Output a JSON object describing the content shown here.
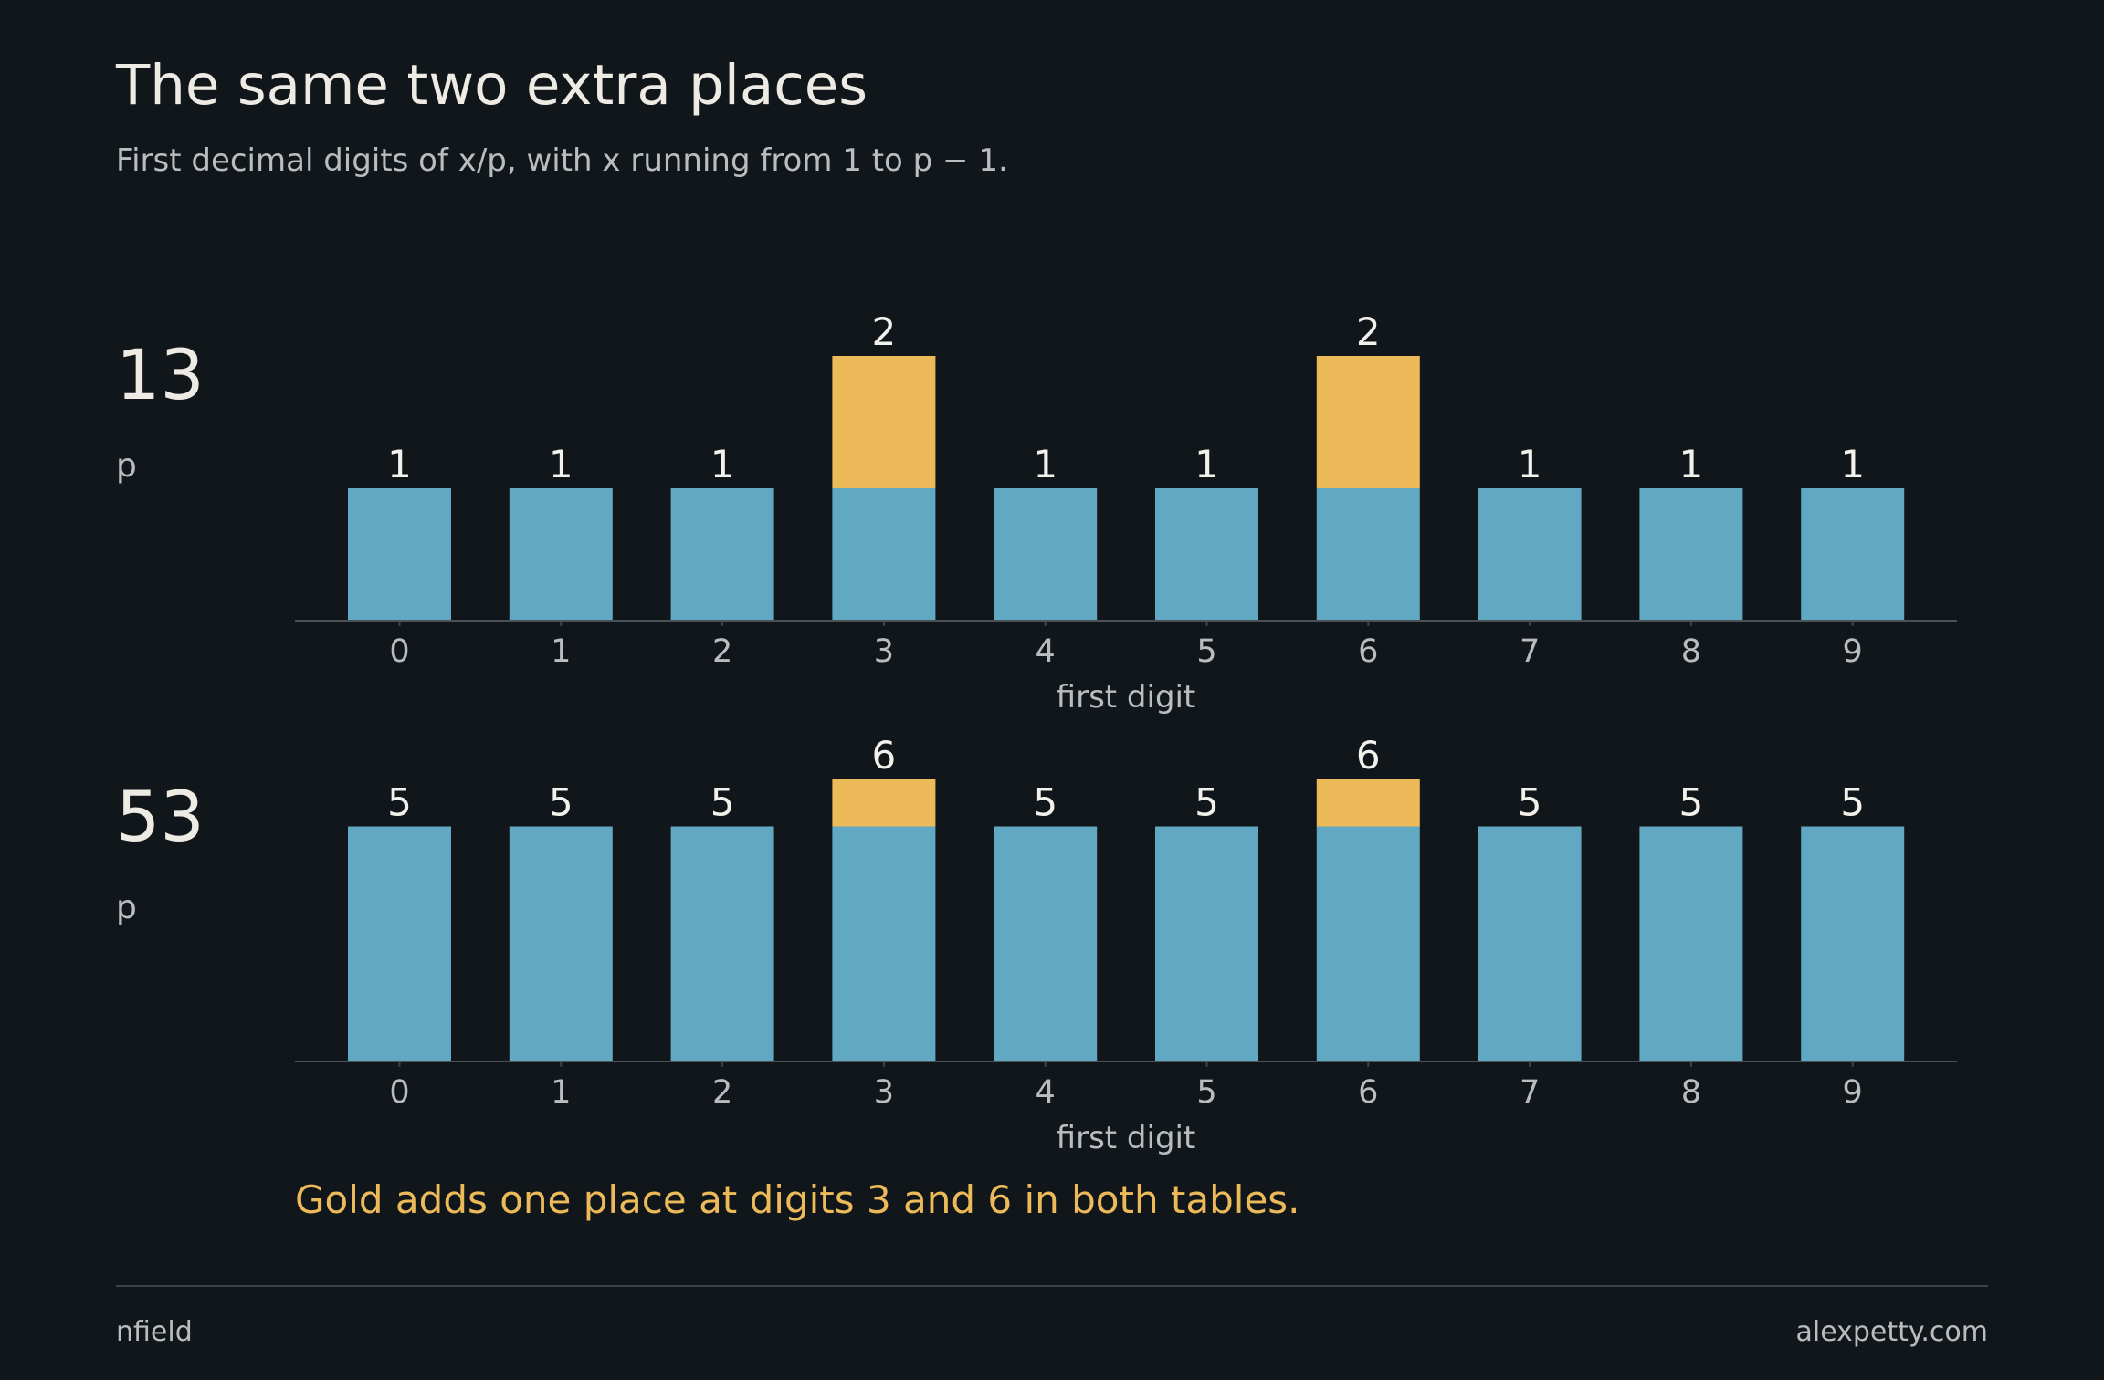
{
  "title": "The same two extra places",
  "subtitle": "First decimal digits of x/p, with x running from 1 to p − 1.",
  "note": "Gold adds one place at digits 3 and 6 in both tables.",
  "footer": {
    "left": "nfield",
    "right": "alexpetty.com"
  },
  "colors": {
    "base": "#61a8c3",
    "extra": "#edba5a",
    "background": "#11161a"
  },
  "chart_data": [
    {
      "type": "bar",
      "p_value": "13",
      "p_label": "p",
      "categories": [
        "0",
        "1",
        "2",
        "3",
        "4",
        "5",
        "6",
        "7",
        "8",
        "9"
      ],
      "xlabel": "first digit",
      "series": [
        {
          "values": [
            1,
            1,
            1,
            1,
            1,
            1,
            1,
            1,
            1,
            1
          ],
          "color": "#61a8c3"
        },
        {
          "values": [
            0,
            0,
            0,
            1,
            0,
            0,
            1,
            0,
            0,
            0
          ],
          "color": "#edba5a"
        }
      ],
      "totals": [
        1,
        1,
        1,
        2,
        1,
        1,
        2,
        1,
        1,
        1
      ],
      "ylim": [
        0,
        2
      ]
    },
    {
      "type": "bar",
      "p_value": "53",
      "p_label": "p",
      "categories": [
        "0",
        "1",
        "2",
        "3",
        "4",
        "5",
        "6",
        "7",
        "8",
        "9"
      ],
      "xlabel": "first digit",
      "series": [
        {
          "values": [
            5,
            5,
            5,
            5,
            5,
            5,
            5,
            5,
            5,
            5
          ],
          "color": "#61a8c3"
        },
        {
          "values": [
            0,
            0,
            0,
            1,
            0,
            0,
            1,
            0,
            0,
            0
          ],
          "color": "#edba5a"
        }
      ],
      "totals": [
        5,
        5,
        5,
        6,
        5,
        5,
        6,
        5,
        5,
        5
      ],
      "ylim": [
        0,
        6
      ]
    }
  ]
}
